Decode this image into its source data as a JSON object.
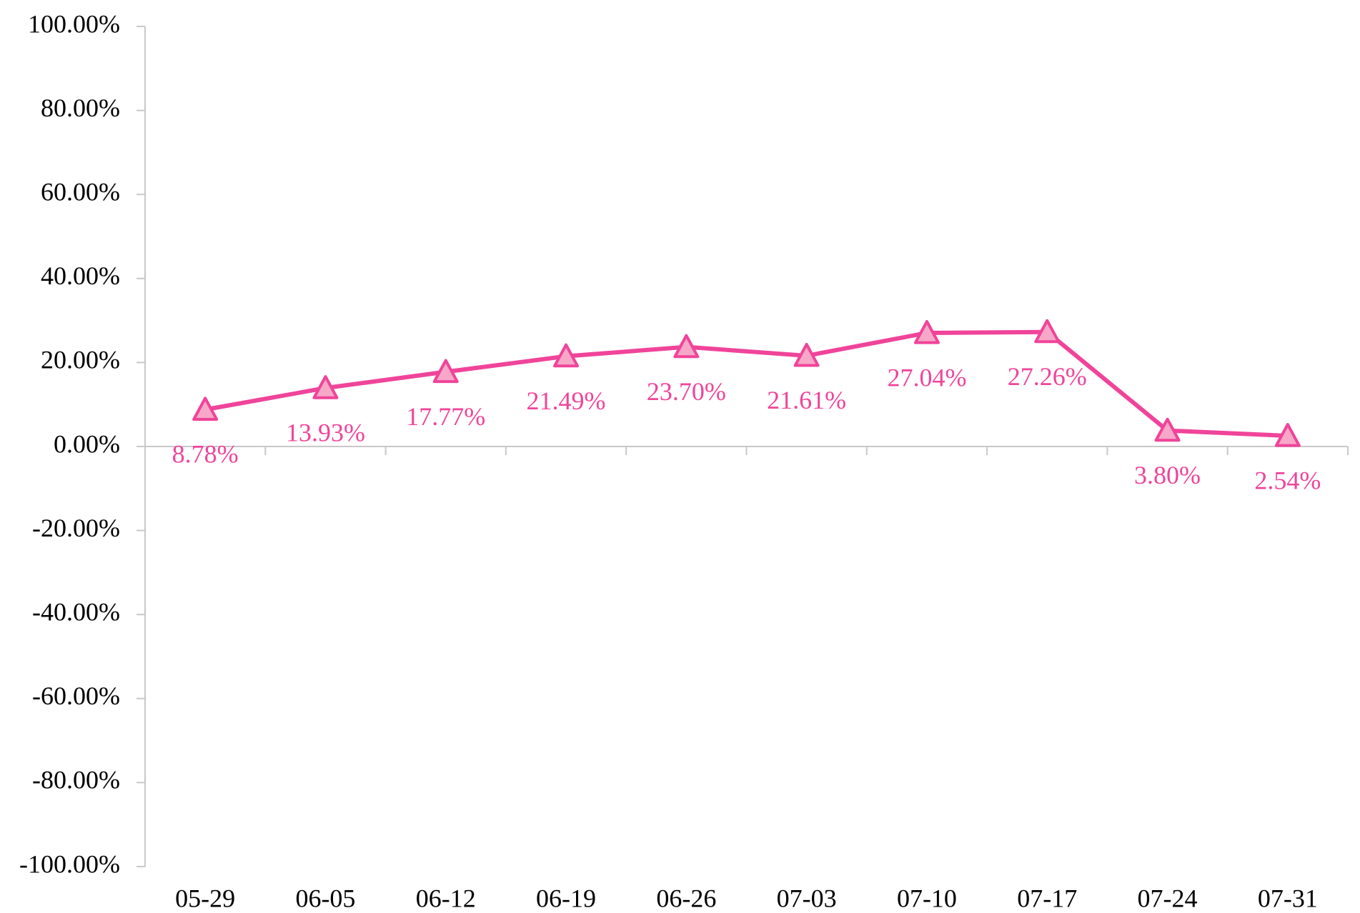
{
  "chart_data": {
    "type": "line",
    "categories": [
      "05-29",
      "06-05",
      "06-12",
      "06-19",
      "06-26",
      "07-03",
      "07-10",
      "07-17",
      "07-24",
      "07-31"
    ],
    "values": [
      8.78,
      13.93,
      17.77,
      21.49,
      23.7,
      21.61,
      27.04,
      27.26,
      3.8,
      2.54
    ],
    "value_labels": [
      "8.78%",
      "13.93%",
      "17.77%",
      "21.49%",
      "23.70%",
      "21.61%",
      "27.04%",
      "27.26%",
      "3.80%",
      "2.54%"
    ],
    "color": "#f0449a",
    "marker_fill": "#f7a8c8",
    "ylim": [
      -100,
      100
    ],
    "yticks": [
      {
        "value": -100,
        "label": "-100.00%"
      },
      {
        "value": -80,
        "label": "-80.00%"
      },
      {
        "value": -60,
        "label": "-60.00%"
      },
      {
        "value": -40,
        "label": "-40.00%"
      },
      {
        "value": -20,
        "label": "-20.00%"
      },
      {
        "value": 0,
        "label": "0.00%"
      },
      {
        "value": 20,
        "label": "20.00%"
      },
      {
        "value": 40,
        "label": "40.00%"
      },
      {
        "value": 60,
        "label": "60.00%"
      },
      {
        "value": 80,
        "label": "80.00%"
      },
      {
        "value": 100,
        "label": "100.00%"
      }
    ],
    "grid": false
  }
}
